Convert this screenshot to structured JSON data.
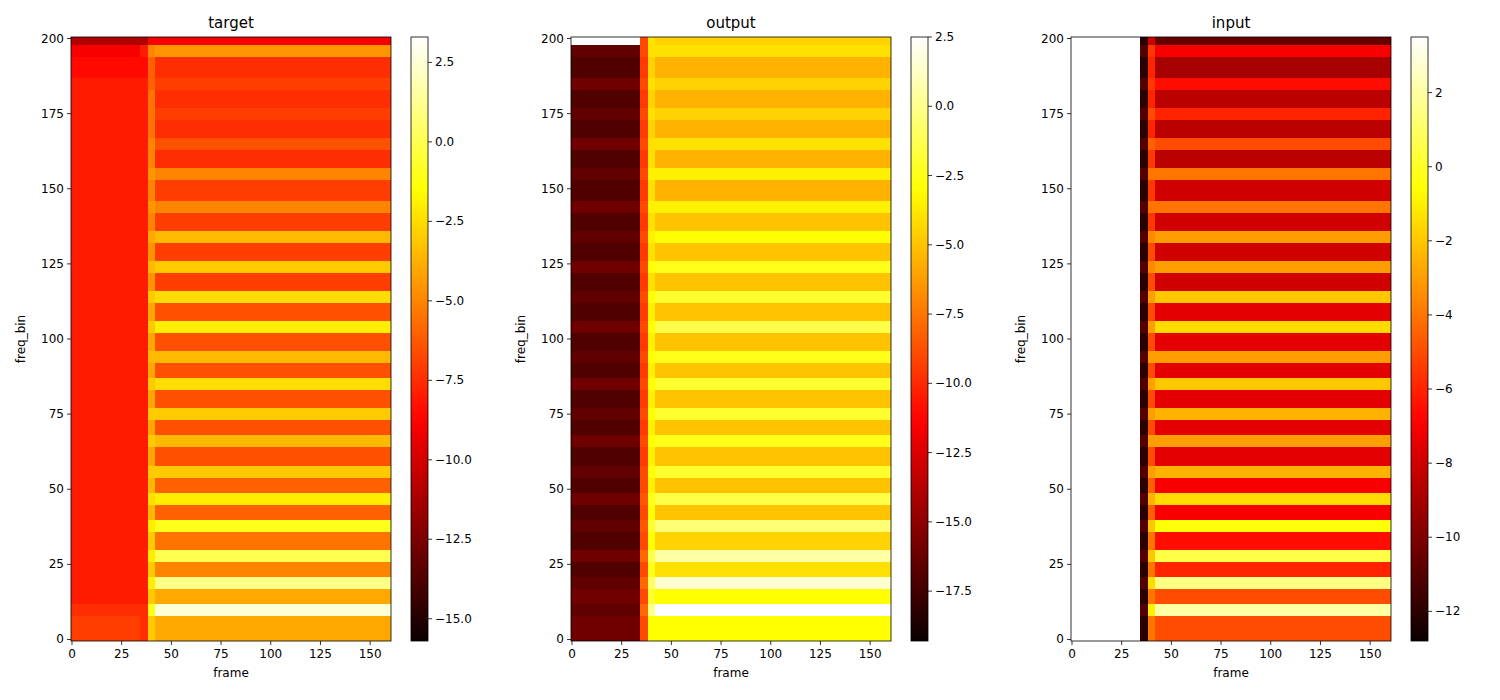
{
  "chart_data": [
    {
      "type": "heatmap",
      "title": "target",
      "x_label": "frame",
      "y_label": "freq_bin",
      "xlim": [
        -0.5,
        160.5
      ],
      "ylim": [
        -0.5,
        200.5
      ],
      "xticks": [
        0,
        25,
        50,
        75,
        100,
        125,
        150
      ],
      "yticks": [
        0,
        25,
        50,
        75,
        100,
        125,
        150,
        175,
        200
      ],
      "x_edges": [
        -0.5,
        34,
        38,
        42,
        160.5
      ],
      "y_edges": [
        -0.5,
        8,
        12,
        17,
        21,
        26,
        30,
        36,
        40,
        45,
        49,
        54,
        58,
        64,
        68,
        73,
        77,
        83,
        87,
        92,
        96,
        102,
        106,
        112,
        116,
        122,
        126,
        132,
        136,
        142,
        146,
        153,
        157,
        163,
        167,
        173,
        177,
        183,
        187,
        194,
        198,
        200.5
      ],
      "cells": [
        [
          -7,
          -7.5,
          -3,
          -4
        ],
        [
          -7.5,
          -7.5,
          -1,
          2.5
        ],
        [
          -8,
          -8,
          -3,
          -4
        ],
        [
          -8,
          -8,
          -2,
          1
        ],
        [
          -8,
          -8,
          -3,
          -5
        ],
        [
          -8,
          -8,
          -2,
          0
        ],
        [
          -8,
          -8,
          -3,
          -5.5
        ],
        [
          -8,
          -8,
          -2,
          -1
        ],
        [
          -8,
          -8,
          -3.5,
          -6
        ],
        [
          -8,
          -8,
          -2.5,
          -2
        ],
        [
          -8,
          -8,
          -3.5,
          -6
        ],
        [
          -8,
          -8,
          -3,
          -3
        ],
        [
          -8,
          -8,
          -4,
          -6.5
        ],
        [
          -8,
          -8,
          -3,
          -3.5
        ],
        [
          -8,
          -8,
          -4,
          -6.5
        ],
        [
          -8,
          -8,
          -3,
          -3
        ],
        [
          -8,
          -8,
          -4,
          -6.5
        ],
        [
          -8,
          -8,
          -3,
          -2.5
        ],
        [
          -8,
          -8,
          -4,
          -6.5
        ],
        [
          -8,
          -8,
          -3.5,
          -3.5
        ],
        [
          -8,
          -8,
          -4,
          -6.5
        ],
        [
          -8,
          -8,
          -3,
          -2
        ],
        [
          -8,
          -8,
          -4,
          -6.5
        ],
        [
          -8,
          -8,
          -3,
          -2.5
        ],
        [
          -8,
          -8,
          -4.5,
          -7
        ],
        [
          -8,
          -8,
          -3.5,
          -3
        ],
        [
          -8,
          -8,
          -4.5,
          -7
        ],
        [
          -8,
          -8,
          -4,
          -3.5
        ],
        [
          -8,
          -8,
          -5,
          -7
        ],
        [
          -8,
          -8,
          -4.5,
          -5
        ],
        [
          -8,
          -8,
          -5,
          -7
        ],
        [
          -8,
          -8,
          -4.5,
          -5
        ],
        [
          -8,
          -8,
          -5,
          -7.5
        ],
        [
          -8,
          -8,
          -5,
          -6.5
        ],
        [
          -8,
          -8,
          -5.5,
          -7.5
        ],
        [
          -8,
          -8,
          -5.5,
          -7
        ],
        [
          -8,
          -8,
          -5.5,
          -7.5
        ],
        [
          -8,
          -8,
          -6,
          -7
        ],
        [
          -8.5,
          -8.5,
          -6,
          -7.5
        ],
        [
          -9,
          -8,
          -5,
          -4.5
        ],
        [
          -11,
          -11,
          -9,
          -9
        ]
      ],
      "colorbar": {
        "range": [
          -15.7,
          3.3
        ],
        "ticks": [
          {
            "value": -15,
            "label": "−15.0"
          },
          {
            "value": -12.5,
            "label": "−12.5"
          },
          {
            "value": -10,
            "label": "−10.0"
          },
          {
            "value": -7.5,
            "label": "−7.5"
          },
          {
            "value": -5,
            "label": "−5.0"
          },
          {
            "value": -2.5,
            "label": "−2.5"
          },
          {
            "value": 0,
            "label": "0.0"
          },
          2.5
        ]
      }
    },
    {
      "type": "heatmap",
      "title": "output",
      "x_label": "frame",
      "y_label": "freq_bin",
      "xlim": [
        -0.5,
        160.5
      ],
      "ylim": [
        -0.5,
        200.5
      ],
      "xticks": [
        0,
        25,
        50,
        75,
        100,
        125,
        150
      ],
      "yticks": [
        0,
        25,
        50,
        75,
        100,
        125,
        150,
        175,
        200
      ],
      "x_edges": [
        -0.5,
        34,
        38,
        42,
        160.5
      ],
      "y_edges": [
        -0.5,
        8,
        12,
        17,
        21,
        26,
        30,
        36,
        40,
        45,
        49,
        54,
        58,
        64,
        68,
        73,
        77,
        83,
        87,
        92,
        96,
        102,
        106,
        112,
        116,
        122,
        126,
        132,
        136,
        142,
        146,
        153,
        157,
        163,
        167,
        173,
        177,
        183,
        187,
        194,
        198,
        200.5
      ],
      "cells": [
        [
          -16,
          -9,
          -3,
          -3
        ],
        [
          -16.5,
          -8,
          0,
          2.5
        ],
        [
          -16,
          -9,
          -2,
          -3
        ],
        [
          -16.5,
          -8,
          -1,
          1.5
        ],
        [
          -17,
          -9,
          -2.5,
          -4
        ],
        [
          -16,
          -8,
          -1.5,
          0.5
        ],
        [
          -17,
          -9,
          -3,
          -4.5
        ],
        [
          -16.5,
          -8.5,
          -2,
          -0.5
        ],
        [
          -17,
          -9,
          -3,
          -5
        ],
        [
          -16,
          -8.5,
          -2.5,
          -1.5
        ],
        [
          -17,
          -9,
          -3.5,
          -5
        ],
        [
          -16.5,
          -9,
          -3,
          -2
        ],
        [
          -17,
          -9.5,
          -3.5,
          -5
        ],
        [
          -16,
          -9,
          -3,
          -2.5
        ],
        [
          -17,
          -9.5,
          -3.5,
          -5
        ],
        [
          -16.5,
          -9,
          -3,
          -2
        ],
        [
          -17,
          -9.5,
          -3.5,
          -5
        ],
        [
          -16,
          -9,
          -3,
          -2
        ],
        [
          -17,
          -9.5,
          -3.5,
          -5
        ],
        [
          -16.5,
          -9,
          -3,
          -2.5
        ],
        [
          -17,
          -9.5,
          -3.5,
          -5
        ],
        [
          -16,
          -9,
          -3,
          -1.5
        ],
        [
          -17,
          -9.5,
          -3.5,
          -5
        ],
        [
          -16.5,
          -9,
          -3,
          -2
        ],
        [
          -17,
          -9.5,
          -4,
          -5
        ],
        [
          -16,
          -9,
          -3,
          -2.5
        ],
        [
          -17,
          -9.5,
          -4,
          -5
        ],
        [
          -16.5,
          -9,
          -3.5,
          -3
        ],
        [
          -17,
          -9.5,
          -4,
          -5
        ],
        [
          -16,
          -9,
          -3.5,
          -3.5
        ],
        [
          -17,
          -9.5,
          -4,
          -5.5
        ],
        [
          -16.5,
          -9,
          -3.5,
          -3.5
        ],
        [
          -17,
          -9.5,
          -4,
          -5.5
        ],
        [
          -16,
          -9,
          -4,
          -4
        ],
        [
          -17,
          -9.5,
          -4.5,
          -5.5
        ],
        [
          -16.5,
          -9,
          -4,
          -4.5
        ],
        [
          -17,
          -9.5,
          -4.5,
          -5.5
        ],
        [
          -16,
          -9,
          -4,
          -4.5
        ],
        [
          -17,
          -9.5,
          -4.5,
          -5.5
        ],
        [
          -16.5,
          -9,
          -4,
          -4
        ],
        [
          2.5,
          -9,
          -4,
          -4.5
        ]
      ],
      "colorbar": {
        "range": [
          -19.3,
          2.5
        ],
        "ticks": [
          {
            "value": -17.5,
            "label": "−17.5"
          },
          {
            "value": -15,
            "label": "−15.0"
          },
          {
            "value": -12.5,
            "label": "−12.5"
          },
          {
            "value": -10,
            "label": "−10.0"
          },
          {
            "value": -7.5,
            "label": "−7.5"
          },
          {
            "value": -5,
            "label": "−5.0"
          },
          {
            "value": -2.5,
            "label": "−2.5"
          },
          {
            "value": 0,
            "label": "0.0"
          },
          2.5
        ]
      }
    },
    {
      "type": "heatmap",
      "title": "input",
      "x_label": "frame",
      "y_label": "freq_bin",
      "xlim": [
        -0.5,
        160.5
      ],
      "ylim": [
        -0.5,
        200.5
      ],
      "xticks": [
        0,
        25,
        50,
        75,
        100,
        125,
        150
      ],
      "yticks": [
        0,
        25,
        50,
        75,
        100,
        125,
        150,
        175,
        200
      ],
      "x_edges": [
        -0.5,
        34,
        38,
        42,
        160.5
      ],
      "y_edges": [
        -0.5,
        8,
        12,
        17,
        21,
        26,
        30,
        36,
        40,
        45,
        49,
        54,
        58,
        64,
        68,
        73,
        77,
        83,
        87,
        92,
        96,
        102,
        106,
        112,
        116,
        122,
        126,
        132,
        136,
        142,
        146,
        153,
        157,
        163,
        167,
        173,
        177,
        183,
        187,
        194,
        198,
        200.5
      ],
      "cells": [
        [
          3.5,
          -12,
          -4,
          -5
        ],
        [
          3.5,
          -11,
          -1,
          2
        ],
        [
          3.5,
          -12,
          -4,
          -5
        ],
        [
          3.5,
          -11,
          -1.5,
          1.5
        ],
        [
          3.5,
          -12,
          -4,
          -6
        ],
        [
          3.5,
          -11,
          -2,
          0.5
        ],
        [
          3.5,
          -12,
          -4,
          -6.5
        ],
        [
          3.5,
          -11,
          -2,
          -0.5
        ],
        [
          3.5,
          -12,
          -4.5,
          -7
        ],
        [
          3.5,
          -11,
          -2.5,
          -1.5
        ],
        [
          3.5,
          -12,
          -4.5,
          -7
        ],
        [
          3.5,
          -11,
          -3,
          -2.5
        ],
        [
          3.5,
          -12,
          -5,
          -7.5
        ],
        [
          3.5,
          -11,
          -3,
          -3
        ],
        [
          3.5,
          -12,
          -5,
          -7.5
        ],
        [
          3.5,
          -11,
          -3,
          -2.5
        ],
        [
          3.5,
          -12,
          -5,
          -7.5
        ],
        [
          3.5,
          -11,
          -3,
          -2
        ],
        [
          3.5,
          -12,
          -5,
          -7.5
        ],
        [
          3.5,
          -11,
          -3,
          -3
        ],
        [
          3.5,
          -12,
          -5,
          -7.5
        ],
        [
          3.5,
          -11,
          -3,
          -1.5
        ],
        [
          3.5,
          -12,
          -5,
          -7.5
        ],
        [
          3.5,
          -11,
          -3,
          -2
        ],
        [
          3.5,
          -12,
          -5,
          -8
        ],
        [
          3.5,
          -11,
          -3.5,
          -3
        ],
        [
          3.5,
          -12,
          -5,
          -8
        ],
        [
          3.5,
          -11,
          -3.5,
          -3
        ],
        [
          3.5,
          -12,
          -5.5,
          -8
        ],
        [
          3.5,
          -11,
          -4,
          -4
        ],
        [
          3.5,
          -12,
          -5.5,
          -8
        ],
        [
          3.5,
          -11,
          -4,
          -4
        ],
        [
          3.5,
          -12,
          -5.5,
          -8.5
        ],
        [
          3.5,
          -11,
          -4.5,
          -5
        ],
        [
          3.5,
          -12,
          -6,
          -8.5
        ],
        [
          3.5,
          -11,
          -5,
          -6
        ],
        [
          3.5,
          -12,
          -6,
          -8.5
        ],
        [
          3.5,
          -11,
          -5.5,
          -6.5
        ],
        [
          3.5,
          -12,
          -6,
          -9
        ],
        [
          3.5,
          -11,
          -5.5,
          -7
        ],
        [
          3.5,
          -12,
          -8,
          -10.5
        ]
      ],
      "colorbar": {
        "range": [
          -12.8,
          3.5
        ],
        "ticks": [
          {
            "value": -12,
            "label": "−12"
          },
          {
            "value": -10,
            "label": "−10"
          },
          {
            "value": -8,
            "label": "−8"
          },
          {
            "value": -6,
            "label": "−6"
          },
          {
            "value": -4,
            "label": "−4"
          },
          {
            "value": -2,
            "label": "−2"
          },
          0,
          2
        ]
      }
    }
  ]
}
